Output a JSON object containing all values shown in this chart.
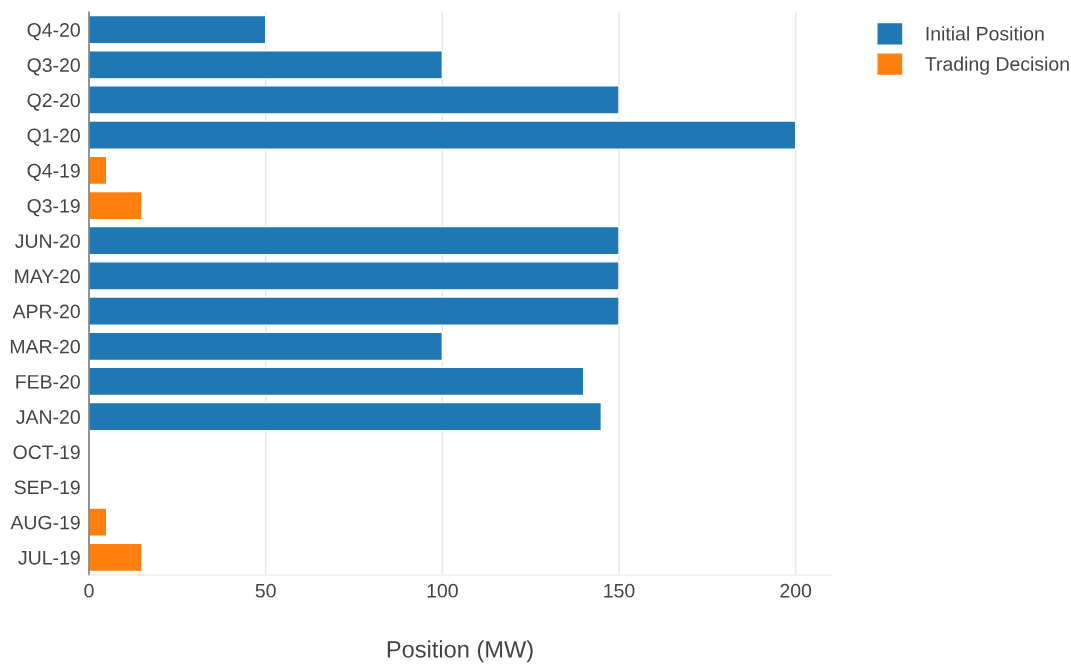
{
  "chart_data": {
    "type": "bar",
    "orientation": "horizontal",
    "xlabel": "Position (MW)",
    "categories": [
      "Q4-20",
      "Q3-20",
      "Q2-20",
      "Q1-20",
      "Q4-19",
      "Q3-19",
      "JUN-20",
      "MAY-20",
      "APR-20",
      "MAR-20",
      "FEB-20",
      "JAN-20",
      "OCT-19",
      "SEP-19",
      "AUG-19",
      "JUL-19"
    ],
    "series": [
      {
        "name": "Initial Position",
        "color": "#1f77b4",
        "values": [
          50,
          100,
          150,
          200,
          null,
          null,
          150,
          150,
          150,
          100,
          140,
          145,
          null,
          null,
          null,
          null
        ]
      },
      {
        "name": "Trading Decision",
        "color": "#ff7f0e",
        "values": [
          null,
          null,
          null,
          null,
          5,
          15,
          null,
          null,
          null,
          null,
          null,
          null,
          null,
          null,
          5,
          15
        ]
      }
    ],
    "xlim": [
      0,
      210
    ],
    "xticks": [
      0,
      50,
      100,
      150,
      200
    ],
    "grid": "x",
    "legend": "top right"
  }
}
